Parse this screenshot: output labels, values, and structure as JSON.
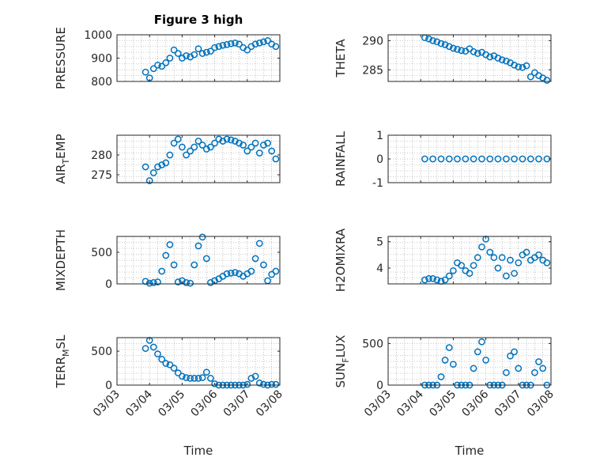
{
  "figure": {
    "title": "Figure 3 high",
    "xlabel": "Time"
  },
  "colors": {
    "marker": "#0072bd"
  },
  "x_axis": {
    "range": [
      "03/03",
      "03/08"
    ],
    "ticks": [
      "03/03",
      "03/04",
      "03/05",
      "03/06",
      "03/07",
      "03/08"
    ]
  },
  "chart_data": [
    {
      "type": "scatter",
      "id": "pressure",
      "ylabel": "PRESSURE",
      "ylim": [
        800,
        1000
      ],
      "yticks": [
        800,
        900,
        1000
      ],
      "grid": true,
      "x": [
        "03/03 21:00",
        "03/04 00:00",
        "03/04 03:00",
        "03/04 06:00",
        "03/04 09:00",
        "03/04 12:00",
        "03/04 15:00",
        "03/04 18:00",
        "03/04 21:00",
        "03/05 00:00",
        "03/05 03:00",
        "03/05 06:00",
        "03/05 09:00",
        "03/05 12:00",
        "03/05 15:00",
        "03/05 18:00",
        "03/05 21:00",
        "03/06 00:00",
        "03/06 03:00",
        "03/06 06:00",
        "03/06 09:00",
        "03/06 12:00",
        "03/06 15:00",
        "03/06 18:00",
        "03/06 21:00",
        "03/07 00:00",
        "03/07 03:00",
        "03/07 06:00",
        "03/07 09:00",
        "03/07 12:00",
        "03/07 15:00",
        "03/07 18:00",
        "03/07 21:00"
      ],
      "y": [
        840,
        815,
        855,
        870,
        865,
        880,
        900,
        935,
        920,
        900,
        910,
        905,
        915,
        940,
        920,
        925,
        930,
        945,
        950,
        955,
        958,
        962,
        965,
        960,
        945,
        935,
        950,
        960,
        965,
        970,
        975,
        960,
        950
      ]
    },
    {
      "type": "scatter",
      "id": "theta",
      "ylabel": "THETA",
      "ylim": [
        283,
        291
      ],
      "yticks": [
        285,
        290
      ],
      "grid": true,
      "x": [
        "03/04 03:00",
        "03/04 06:00",
        "03/04 09:00",
        "03/04 12:00",
        "03/04 15:00",
        "03/04 18:00",
        "03/04 21:00",
        "03/05 00:00",
        "03/05 03:00",
        "03/05 06:00",
        "03/05 09:00",
        "03/05 12:00",
        "03/05 15:00",
        "03/05 18:00",
        "03/05 21:00",
        "03/06 00:00",
        "03/06 03:00",
        "03/06 06:00",
        "03/06 09:00",
        "03/06 12:00",
        "03/06 15:00",
        "03/06 18:00",
        "03/06 21:00",
        "03/07 00:00",
        "03/07 03:00",
        "03/07 06:00",
        "03/07 09:00",
        "03/07 12:00",
        "03/07 15:00",
        "03/07 18:00",
        "03/07 21:00"
      ],
      "y": [
        290.5,
        290.3,
        290.0,
        289.8,
        289.5,
        289.3,
        289.0,
        288.7,
        288.5,
        288.3,
        288.2,
        288.6,
        288.1,
        287.8,
        288.0,
        287.6,
        287.2,
        287.4,
        287.0,
        286.7,
        286.5,
        286.2,
        285.8,
        285.5,
        285.4,
        285.7,
        283.8,
        284.5,
        284.0,
        283.6,
        283.2
      ]
    },
    {
      "type": "scatter",
      "id": "air_temp",
      "ylabel": "AIR_TEMP",
      "ylim": [
        273,
        285
      ],
      "yticks": [
        275,
        280
      ],
      "grid": true,
      "x": [
        "03/03 21:00",
        "03/04 00:00",
        "03/04 03:00",
        "03/04 06:00",
        "03/04 09:00",
        "03/04 12:00",
        "03/04 15:00",
        "03/04 18:00",
        "03/04 21:00",
        "03/05 00:00",
        "03/05 03:00",
        "03/05 06:00",
        "03/05 09:00",
        "03/05 12:00",
        "03/05 15:00",
        "03/05 18:00",
        "03/05 21:00",
        "03/06 00:00",
        "03/06 03:00",
        "03/06 06:00",
        "03/06 09:00",
        "03/06 12:00",
        "03/06 15:00",
        "03/06 18:00",
        "03/06 21:00",
        "03/07 00:00",
        "03/07 03:00",
        "03/07 06:00",
        "03/07 09:00",
        "03/07 12:00",
        "03/07 15:00",
        "03/07 18:00",
        "03/07 21:00"
      ],
      "y": [
        277,
        273.5,
        275.5,
        277,
        277.5,
        278,
        280,
        283,
        284,
        282,
        280,
        281,
        282,
        283.5,
        282.5,
        281.5,
        282,
        283,
        284,
        283.5,
        284,
        283.8,
        283.5,
        283,
        282.5,
        281,
        282,
        283,
        280.5,
        282.5,
        283,
        281,
        279
      ]
    },
    {
      "type": "scatter",
      "id": "rainfall",
      "ylabel": "RAINFALL",
      "ylim": [
        -1,
        1
      ],
      "yticks": [
        -1,
        0,
        1
      ],
      "grid": true,
      "x": [
        "03/04 03:00",
        "03/04 09:00",
        "03/04 15:00",
        "03/04 21:00",
        "03/05 03:00",
        "03/05 09:00",
        "03/05 15:00",
        "03/05 21:00",
        "03/06 03:00",
        "03/06 09:00",
        "03/06 15:00",
        "03/06 21:00",
        "03/07 03:00",
        "03/07 09:00",
        "03/07 15:00",
        "03/07 21:00"
      ],
      "y": [
        0,
        0,
        0,
        0,
        0,
        0,
        0,
        0,
        0,
        0,
        0,
        0,
        0,
        0,
        0,
        0
      ]
    },
    {
      "type": "scatter",
      "id": "mixdepth",
      "ylabel": "MIXDEPTH",
      "ylim": [
        0,
        750
      ],
      "yticks": [
        0,
        500
      ],
      "grid": true,
      "x": [
        "03/03 21:00",
        "03/04 00:00",
        "03/04 03:00",
        "03/04 06:00",
        "03/04 09:00",
        "03/04 12:00",
        "03/04 15:00",
        "03/04 18:00",
        "03/04 21:00",
        "03/05 00:00",
        "03/05 03:00",
        "03/05 06:00",
        "03/05 09:00",
        "03/05 12:00",
        "03/05 15:00",
        "03/05 18:00",
        "03/05 21:00",
        "03/06 00:00",
        "03/06 03:00",
        "03/06 06:00",
        "03/06 09:00",
        "03/06 12:00",
        "03/06 15:00",
        "03/06 18:00",
        "03/06 21:00",
        "03/07 00:00",
        "03/07 03:00",
        "03/07 06:00",
        "03/07 09:00",
        "03/07 12:00",
        "03/07 15:00",
        "03/07 18:00",
        "03/07 21:00"
      ],
      "y": [
        40,
        10,
        20,
        30,
        200,
        450,
        620,
        300,
        30,
        50,
        20,
        10,
        300,
        600,
        740,
        400,
        20,
        50,
        80,
        120,
        160,
        170,
        180,
        160,
        120,
        160,
        200,
        400,
        640,
        300,
        50,
        150,
        200
      ]
    },
    {
      "type": "scatter",
      "id": "h2omixra",
      "ylabel": "H2OMIXRA",
      "ylim": [
        3.4,
        5.2
      ],
      "yticks": [
        4,
        5
      ],
      "grid": true,
      "x": [
        "03/04 03:00",
        "03/04 06:00",
        "03/04 09:00",
        "03/04 12:00",
        "03/04 15:00",
        "03/04 18:00",
        "03/04 21:00",
        "03/05 00:00",
        "03/05 03:00",
        "03/05 06:00",
        "03/05 09:00",
        "03/05 12:00",
        "03/05 15:00",
        "03/05 18:00",
        "03/05 21:00",
        "03/06 00:00",
        "03/06 03:00",
        "03/06 06:00",
        "03/06 09:00",
        "03/06 12:00",
        "03/06 15:00",
        "03/06 18:00",
        "03/06 21:00",
        "03/07 00:00",
        "03/07 03:00",
        "03/07 06:00",
        "03/07 09:00",
        "03/07 12:00",
        "03/07 15:00",
        "03/07 18:00",
        "03/07 21:00"
      ],
      "y": [
        3.55,
        3.6,
        3.6,
        3.55,
        3.5,
        3.55,
        3.7,
        3.9,
        4.2,
        4.1,
        3.9,
        3.8,
        4.1,
        4.4,
        4.8,
        5.1,
        4.6,
        4.4,
        4.0,
        4.4,
        3.7,
        4.3,
        3.8,
        4.2,
        4.5,
        4.6,
        4.3,
        4.4,
        4.5,
        4.3,
        4.2
      ]
    },
    {
      "type": "scatter",
      "id": "terr_msl",
      "ylabel": "TERR_MSL",
      "ylim": [
        0,
        700
      ],
      "yticks": [
        0,
        500
      ],
      "grid": true,
      "x": [
        "03/03 21:00",
        "03/04 00:00",
        "03/04 03:00",
        "03/04 06:00",
        "03/04 09:00",
        "03/04 12:00",
        "03/04 15:00",
        "03/04 18:00",
        "03/04 21:00",
        "03/05 00:00",
        "03/05 03:00",
        "03/05 06:00",
        "03/05 09:00",
        "03/05 12:00",
        "03/05 15:00",
        "03/05 18:00",
        "03/05 21:00",
        "03/06 00:00",
        "03/06 03:00",
        "03/06 06:00",
        "03/06 09:00",
        "03/06 12:00",
        "03/06 15:00",
        "03/06 18:00",
        "03/06 21:00",
        "03/07 00:00",
        "03/07 03:00",
        "03/07 06:00",
        "03/07 09:00",
        "03/07 12:00",
        "03/07 15:00",
        "03/07 18:00",
        "03/07 21:00"
      ],
      "y": [
        540,
        660,
        560,
        460,
        380,
        320,
        300,
        250,
        180,
        130,
        110,
        100,
        100,
        100,
        110,
        190,
        100,
        20,
        0,
        0,
        0,
        0,
        0,
        0,
        0,
        10,
        100,
        130,
        30,
        10,
        0,
        10,
        10
      ]
    },
    {
      "type": "scatter",
      "id": "sun_flux",
      "ylabel": "SUN_FLUX",
      "ylim": [
        0,
        570
      ],
      "yticks": [
        0,
        500
      ],
      "grid": true,
      "x": [
        "03/04 03:00",
        "03/04 06:00",
        "03/04 09:00",
        "03/04 12:00",
        "03/04 15:00",
        "03/04 18:00",
        "03/04 21:00",
        "03/05 00:00",
        "03/05 03:00",
        "03/05 06:00",
        "03/05 09:00",
        "03/05 12:00",
        "03/05 15:00",
        "03/05 18:00",
        "03/05 21:00",
        "03/06 00:00",
        "03/06 03:00",
        "03/06 06:00",
        "03/06 09:00",
        "03/06 12:00",
        "03/06 15:00",
        "03/06 18:00",
        "03/06 21:00",
        "03/07 00:00",
        "03/07 03:00",
        "03/07 06:00",
        "03/07 09:00",
        "03/07 12:00",
        "03/07 15:00",
        "03/07 18:00",
        "03/07 21:00"
      ],
      "y": [
        0,
        0,
        0,
        0,
        100,
        300,
        450,
        250,
        0,
        0,
        0,
        0,
        200,
        400,
        520,
        300,
        0,
        0,
        0,
        0,
        150,
        350,
        400,
        200,
        0,
        0,
        0,
        150,
        280,
        200,
        0
      ]
    }
  ]
}
